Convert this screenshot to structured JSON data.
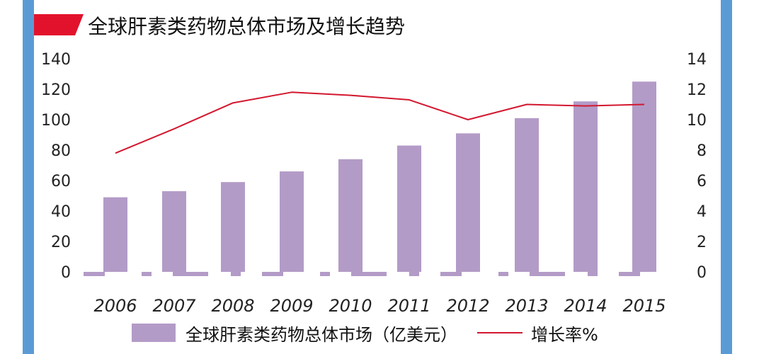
{
  "title": "全球肝素类药物总体市场及增长趋势",
  "colors": {
    "side": "#5b9bd5",
    "marker": "#e3122c",
    "bar": "#b39bc7",
    "line": "#d3172f"
  },
  "legend": {
    "bar_label": "全球肝素类药物总体市场（亿美元）",
    "line_label": "增长率%"
  },
  "chart_data": {
    "type": "bar",
    "categories": [
      "2006",
      "2007",
      "2008",
      "2009",
      "2010",
      "2011",
      "2012",
      "2013",
      "2014",
      "2015"
    ],
    "series": [
      {
        "name": "全球肝素类药物总体市场（亿美元）",
        "type": "bar",
        "axis": "left",
        "values": [
          49,
          53,
          59,
          66,
          74,
          83,
          91,
          101,
          112,
          125
        ]
      },
      {
        "name": "增长率%",
        "type": "line",
        "axis": "right",
        "values": [
          7.8,
          9.4,
          11.1,
          11.8,
          11.6,
          11.3,
          10.0,
          11.0,
          10.9,
          11.0
        ]
      }
    ],
    "y_left": {
      "min": 0,
      "max": 140,
      "ticks": [
        "0",
        "20",
        "40",
        "60",
        "80",
        "100",
        "120",
        "140"
      ]
    },
    "y_right": {
      "min": 0,
      "max": 14,
      "ticks": [
        "0",
        "2",
        "4",
        "6",
        "8",
        "10",
        "12",
        "14"
      ]
    },
    "legend_position": "bottom",
    "grid": false
  }
}
